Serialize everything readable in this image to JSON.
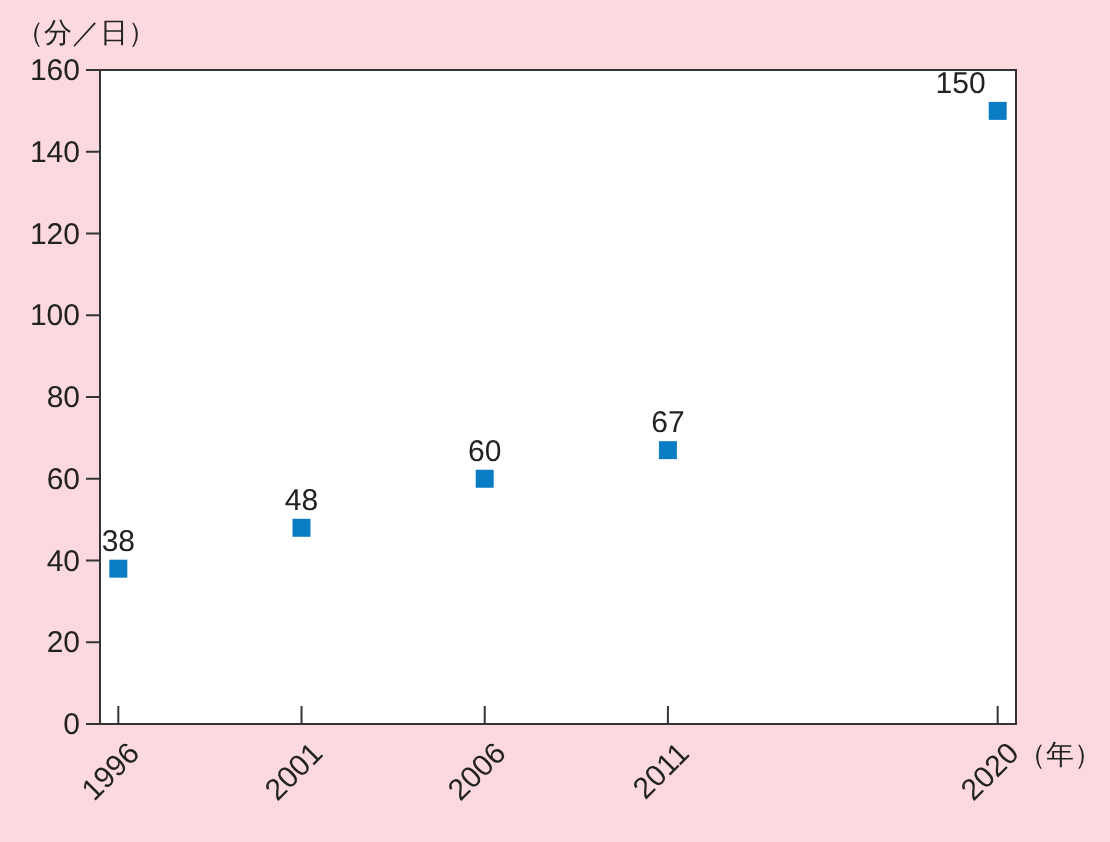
{
  "chart_data": {
    "type": "scatter",
    "ylabel": "（分／日）",
    "xlabel": "（年）",
    "x": [
      1996,
      2001,
      2006,
      2011,
      2020
    ],
    "values": [
      38,
      48,
      60,
      67,
      150
    ],
    "color": "#0a7cc4",
    "marker": "square",
    "data_labels": true,
    "xlim": [
      1995.5,
      2020.5
    ],
    "xticks": [
      1996,
      2001,
      2006,
      2011,
      2020
    ],
    "ylim": [
      0,
      160
    ],
    "yticks": [
      0,
      20,
      40,
      60,
      80,
      100,
      120,
      140,
      160
    ]
  }
}
